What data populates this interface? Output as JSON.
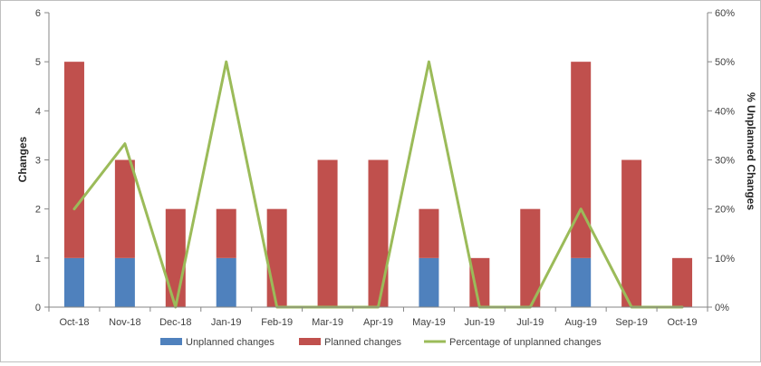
{
  "chart_data": {
    "type": "bar",
    "stacked": true,
    "categories": [
      "Oct-18",
      "Nov-18",
      "Dec-18",
      "Jan-19",
      "Feb-19",
      "Mar-19",
      "Apr-19",
      "May-19",
      "Jun-19",
      "Jul-19",
      "Aug-19",
      "Sep-19",
      "Oct-19"
    ],
    "series": [
      {
        "name": "Unplanned changes",
        "kind": "bar",
        "axis": "left",
        "color": "#4f81bd",
        "values": [
          1,
          1,
          0,
          1,
          0,
          0,
          0,
          1,
          0,
          0,
          1,
          0,
          0
        ]
      },
      {
        "name": "Planned changes",
        "kind": "bar",
        "axis": "left",
        "color": "#c0504d",
        "values": [
          4,
          2,
          2,
          1,
          2,
          3,
          3,
          1,
          1,
          2,
          4,
          3,
          1
        ]
      },
      {
        "name": "Percentage of unplanned changes",
        "kind": "line",
        "axis": "right",
        "color": "#9bbb59",
        "values": [
          20,
          33.3,
          0,
          50,
          0,
          0,
          0,
          50,
          0,
          0,
          20,
          0,
          0
        ]
      }
    ],
    "ylabel": "Changes",
    "ylabel_right": "% Unplanned Changes",
    "ylim": [
      0,
      6
    ],
    "ylim_right": [
      0,
      60
    ],
    "yticks": [
      "0",
      "1",
      "2",
      "3",
      "4",
      "5",
      "6"
    ],
    "yticks_right": [
      "0%",
      "10%",
      "20%",
      "30%",
      "40%",
      "50%",
      "60%"
    ],
    "grid": false,
    "legend": "bottom"
  }
}
